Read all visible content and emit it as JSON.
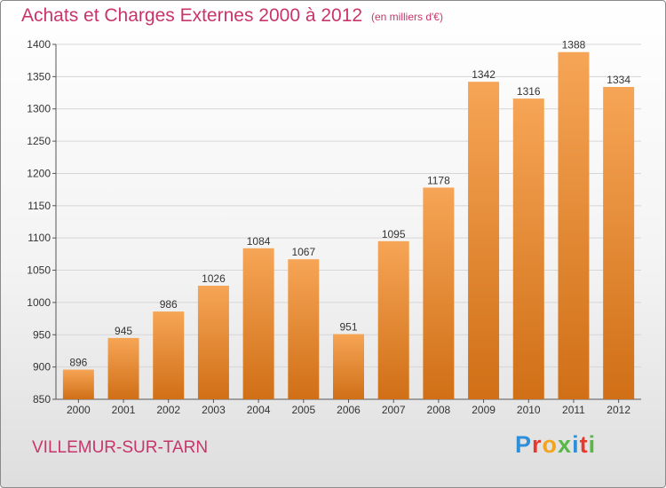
{
  "title": "Achats et Charges Externes 2000 à 2012",
  "subtitle": "(en milliers d'€)",
  "location": "VILLEMUR-SUR-TARN",
  "logo": {
    "letters": [
      "P",
      "r",
      "o",
      "x",
      "i",
      "t",
      "i"
    ],
    "colors": [
      "#2f8fd8",
      "#e8392f",
      "#f2a41c",
      "#57b847",
      "#2f8fd8",
      "#e8392f",
      "#57b847"
    ]
  },
  "colors": {
    "bar_top": "#f6a556",
    "bar_bottom": "#d06f16",
    "text_accent": "#c8356a"
  },
  "chart_data": {
    "type": "bar",
    "title": "Achats et Charges Externes 2000 à 2012",
    "subtitle": "(en milliers d'€)",
    "categories": [
      "2000",
      "2001",
      "2002",
      "2003",
      "2004",
      "2005",
      "2006",
      "2007",
      "2008",
      "2009",
      "2010",
      "2011",
      "2012"
    ],
    "values": [
      896,
      945,
      986,
      1026,
      1084,
      1067,
      951,
      1095,
      1178,
      1342,
      1316,
      1388,
      1334
    ],
    "ylim": [
      850,
      1400
    ],
    "yticks": [
      850,
      900,
      950,
      1000,
      1050,
      1100,
      1150,
      1200,
      1250,
      1300,
      1350,
      1400
    ],
    "grid": true,
    "data_labels": true
  }
}
